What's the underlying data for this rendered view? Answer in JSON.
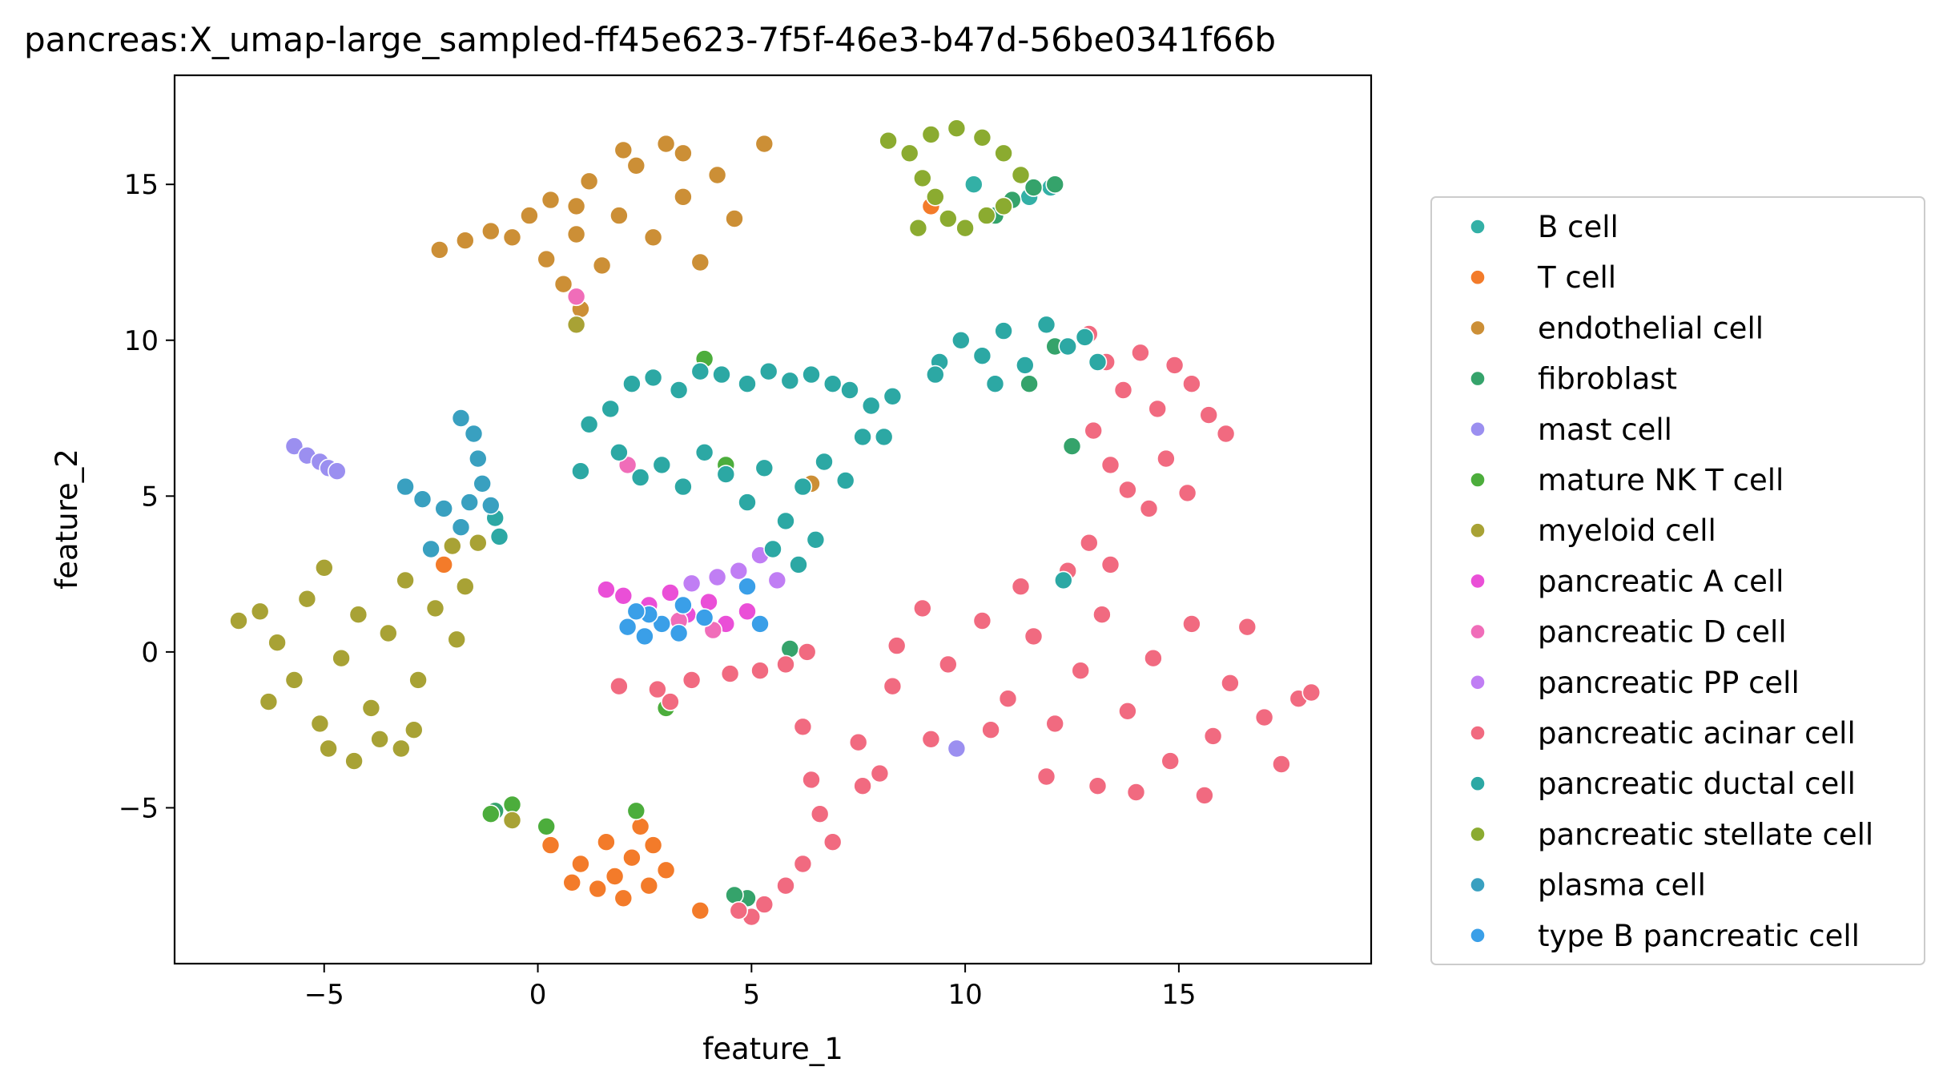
{
  "chart_data": {
    "type": "scatter",
    "title": "pancreas:X_umap-large_sampled-ff45e623-7f5f-46e3-b47d-56be0341f66b",
    "xlabel": "feature_1",
    "ylabel": "feature_2",
    "xlim": [
      -8.5,
      19.5
    ],
    "ylim": [
      -10.0,
      18.5
    ],
    "xticks": [
      -5,
      0,
      5,
      10,
      15
    ],
    "yticks": [
      -5,
      0,
      5,
      10,
      15
    ],
    "xtick_labels": [
      "−5",
      "0",
      "5",
      "10",
      "15"
    ],
    "ytick_labels": [
      "−5",
      "0",
      "5",
      "10",
      "15"
    ],
    "grid": false,
    "legend_position": "outside-right",
    "marker_edge": "#ffffff",
    "series": [
      {
        "name": "B cell",
        "color": "#33b0a6",
        "points": [
          [
            10.2,
            15.0
          ],
          [
            11.5,
            14.6
          ],
          [
            12.0,
            14.9
          ]
        ]
      },
      {
        "name": "T cell",
        "color": "#f37b2a",
        "points": [
          [
            0.3,
            -6.2
          ],
          [
            1.0,
            -6.8
          ],
          [
            1.6,
            -6.1
          ],
          [
            2.2,
            -6.6
          ],
          [
            2.7,
            -6.2
          ],
          [
            0.8,
            -7.4
          ],
          [
            1.4,
            -7.6
          ],
          [
            2.0,
            -7.9
          ],
          [
            2.6,
            -7.5
          ],
          [
            3.0,
            -7.0
          ],
          [
            1.8,
            -7.2
          ],
          [
            2.4,
            -5.6
          ],
          [
            3.8,
            -8.3
          ],
          [
            -2.2,
            2.8
          ],
          [
            9.2,
            14.3
          ]
        ]
      },
      {
        "name": "endothelial cell",
        "color": "#cc8f36",
        "points": [
          [
            -2.3,
            12.9
          ],
          [
            -1.7,
            13.2
          ],
          [
            -1.1,
            13.5
          ],
          [
            -0.6,
            13.3
          ],
          [
            -0.2,
            14.0
          ],
          [
            0.2,
            12.6
          ],
          [
            0.6,
            11.8
          ],
          [
            0.3,
            14.5
          ],
          [
            0.9,
            13.4
          ],
          [
            1.2,
            15.1
          ],
          [
            1.5,
            12.4
          ],
          [
            1.9,
            14.0
          ],
          [
            2.3,
            15.6
          ],
          [
            2.7,
            13.3
          ],
          [
            3.0,
            16.3
          ],
          [
            3.4,
            14.6
          ],
          [
            3.8,
            12.5
          ],
          [
            4.2,
            15.3
          ],
          [
            4.6,
            13.9
          ],
          [
            3.4,
            16.0
          ],
          [
            2.0,
            16.1
          ],
          [
            1.0,
            11.0
          ],
          [
            5.3,
            16.3
          ],
          [
            6.4,
            5.4
          ],
          [
            0.9,
            14.3
          ]
        ]
      },
      {
        "name": "fibroblast",
        "color": "#35a36b",
        "points": [
          [
            10.7,
            14.0
          ],
          [
            11.1,
            14.5
          ],
          [
            11.6,
            14.9
          ],
          [
            12.1,
            15.0
          ],
          [
            11.5,
            8.6
          ],
          [
            12.1,
            9.8
          ],
          [
            4.9,
            -7.9
          ],
          [
            4.6,
            -7.8
          ],
          [
            5.9,
            0.1
          ],
          [
            12.5,
            6.6
          ],
          [
            -1.0,
            -5.1
          ]
        ]
      },
      {
        "name": "mast cell",
        "color": "#9b8ff0",
        "points": [
          [
            -5.7,
            6.6
          ],
          [
            -5.4,
            6.3
          ],
          [
            -5.1,
            6.1
          ],
          [
            -4.9,
            5.9
          ],
          [
            -4.7,
            5.8
          ],
          [
            9.8,
            -3.1
          ]
        ]
      },
      {
        "name": "mature NK T cell",
        "color": "#4cad3c",
        "points": [
          [
            -1.1,
            -5.2
          ],
          [
            -0.6,
            -4.9
          ],
          [
            0.2,
            -5.6
          ],
          [
            2.3,
            -5.1
          ],
          [
            3.9,
            9.4
          ],
          [
            4.4,
            6.0
          ],
          [
            3.0,
            -1.8
          ]
        ]
      },
      {
        "name": "myeloid cell",
        "color": "#a8a235",
        "points": [
          [
            -7.0,
            1.0
          ],
          [
            -6.5,
            1.3
          ],
          [
            -6.1,
            0.3
          ],
          [
            -5.7,
            -0.9
          ],
          [
            -5.4,
            1.7
          ],
          [
            -5.0,
            2.7
          ],
          [
            -4.6,
            -0.2
          ],
          [
            -4.2,
            1.2
          ],
          [
            -3.9,
            -1.8
          ],
          [
            -3.5,
            0.6
          ],
          [
            -3.1,
            2.3
          ],
          [
            -2.8,
            -0.9
          ],
          [
            -2.4,
            1.4
          ],
          [
            -2.0,
            3.4
          ],
          [
            -1.7,
            2.1
          ],
          [
            -1.4,
            3.5
          ],
          [
            -4.9,
            -3.1
          ],
          [
            -4.3,
            -3.5
          ],
          [
            -3.7,
            -2.8
          ],
          [
            -3.2,
            -3.1
          ],
          [
            -6.3,
            -1.6
          ],
          [
            -5.1,
            -2.3
          ],
          [
            -2.9,
            -2.5
          ],
          [
            -1.9,
            0.4
          ],
          [
            0.9,
            10.5
          ],
          [
            -0.6,
            -5.4
          ]
        ]
      },
      {
        "name": "pancreatic A cell",
        "color": "#ea4fd7",
        "points": [
          [
            1.6,
            2.0
          ],
          [
            2.0,
            1.8
          ],
          [
            2.6,
            1.5
          ],
          [
            3.1,
            1.9
          ],
          [
            3.5,
            1.2
          ],
          [
            4.0,
            1.6
          ],
          [
            4.4,
            0.9
          ],
          [
            4.9,
            1.3
          ]
        ]
      },
      {
        "name": "pancreatic D cell",
        "color": "#f06db9",
        "points": [
          [
            2.1,
            6.0
          ],
          [
            0.9,
            11.4
          ],
          [
            3.3,
            1.0
          ],
          [
            4.1,
            0.7
          ]
        ]
      },
      {
        "name": "pancreatic PP cell",
        "color": "#c07ef4",
        "points": [
          [
            3.6,
            2.2
          ],
          [
            4.2,
            2.4
          ],
          [
            4.7,
            2.6
          ],
          [
            5.2,
            3.1
          ],
          [
            5.6,
            2.3
          ]
        ]
      },
      {
        "name": "pancreatic acinar cell",
        "color": "#f16a80",
        "points": [
          [
            12.9,
            10.2
          ],
          [
            13.3,
            9.3
          ],
          [
            13.7,
            8.4
          ],
          [
            14.1,
            9.6
          ],
          [
            14.5,
            7.8
          ],
          [
            14.9,
            9.2
          ],
          [
            15.3,
            8.6
          ],
          [
            15.7,
            7.6
          ],
          [
            16.1,
            7.0
          ],
          [
            13.0,
            7.1
          ],
          [
            13.4,
            6.0
          ],
          [
            13.8,
            5.2
          ],
          [
            14.3,
            4.6
          ],
          [
            14.7,
            6.2
          ],
          [
            15.2,
            5.1
          ],
          [
            12.9,
            3.5
          ],
          [
            13.4,
            2.8
          ],
          [
            12.4,
            2.6
          ],
          [
            11.3,
            2.1
          ],
          [
            9.0,
            1.4
          ],
          [
            8.4,
            0.2
          ],
          [
            8.3,
            -1.1
          ],
          [
            9.6,
            -0.4
          ],
          [
            10.4,
            1.0
          ],
          [
            11.0,
            -1.5
          ],
          [
            11.6,
            0.5
          ],
          [
            12.1,
            -2.3
          ],
          [
            12.7,
            -0.6
          ],
          [
            13.2,
            1.2
          ],
          [
            13.8,
            -1.9
          ],
          [
            14.4,
            -0.2
          ],
          [
            14.8,
            -3.5
          ],
          [
            15.3,
            0.9
          ],
          [
            15.8,
            -2.7
          ],
          [
            16.2,
            -1.0
          ],
          [
            16.6,
            0.8
          ],
          [
            17.0,
            -2.1
          ],
          [
            17.4,
            -3.6
          ],
          [
            17.8,
            -1.5
          ],
          [
            18.1,
            -1.3
          ],
          [
            10.6,
            -2.5
          ],
          [
            11.9,
            -4.0
          ],
          [
            13.1,
            -4.3
          ],
          [
            14.0,
            -4.5
          ],
          [
            15.6,
            -4.6
          ],
          [
            6.2,
            -2.4
          ],
          [
            6.4,
            -4.1
          ],
          [
            6.6,
            -5.2
          ],
          [
            6.9,
            -6.1
          ],
          [
            6.2,
            -6.8
          ],
          [
            5.8,
            -7.5
          ],
          [
            5.3,
            -8.1
          ],
          [
            5.0,
            -8.5
          ],
          [
            4.7,
            -8.3
          ],
          [
            7.6,
            -4.3
          ],
          [
            8.0,
            -3.9
          ],
          [
            7.5,
            -2.9
          ],
          [
            9.2,
            -2.8
          ],
          [
            1.9,
            -1.1
          ],
          [
            2.8,
            -1.2
          ],
          [
            3.6,
            -0.9
          ],
          [
            4.5,
            -0.7
          ],
          [
            5.2,
            -0.6
          ],
          [
            5.8,
            -0.4
          ],
          [
            6.3,
            0.0
          ],
          [
            3.1,
            -1.6
          ]
        ]
      },
      {
        "name": "pancreatic ductal cell",
        "color": "#2ca8a4",
        "points": [
          [
            1.2,
            7.3
          ],
          [
            1.7,
            7.8
          ],
          [
            2.2,
            8.6
          ],
          [
            2.7,
            8.8
          ],
          [
            3.3,
            8.4
          ],
          [
            3.8,
            9.0
          ],
          [
            4.3,
            8.9
          ],
          [
            4.9,
            8.6
          ],
          [
            5.4,
            9.0
          ],
          [
            5.9,
            8.7
          ],
          [
            6.4,
            8.9
          ],
          [
            6.9,
            8.6
          ],
          [
            7.3,
            8.4
          ],
          [
            7.8,
            7.9
          ],
          [
            8.1,
            6.9
          ],
          [
            1.9,
            6.4
          ],
          [
            2.4,
            5.6
          ],
          [
            2.9,
            6.0
          ],
          [
            3.4,
            5.3
          ],
          [
            3.9,
            6.4
          ],
          [
            4.4,
            5.7
          ],
          [
            4.9,
            4.8
          ],
          [
            5.3,
            5.9
          ],
          [
            5.8,
            4.2
          ],
          [
            6.2,
            5.3
          ],
          [
            6.7,
            6.1
          ],
          [
            7.2,
            5.5
          ],
          [
            7.6,
            6.9
          ],
          [
            5.5,
            3.3
          ],
          [
            6.1,
            2.8
          ],
          [
            6.5,
            3.6
          ],
          [
            1.0,
            5.8
          ],
          [
            9.4,
            9.3
          ],
          [
            9.9,
            10.0
          ],
          [
            10.4,
            9.5
          ],
          [
            10.9,
            10.3
          ],
          [
            11.4,
            9.2
          ],
          [
            11.9,
            10.5
          ],
          [
            12.4,
            9.8
          ],
          [
            12.8,
            10.1
          ],
          [
            13.1,
            9.3
          ],
          [
            9.3,
            8.9
          ],
          [
            10.7,
            8.6
          ],
          [
            8.3,
            8.2
          ],
          [
            12.3,
            2.3
          ],
          [
            -1.0,
            4.3
          ],
          [
            -0.9,
            3.7
          ]
        ]
      },
      {
        "name": "pancreatic stellate cell",
        "color": "#8bab30",
        "points": [
          [
            8.2,
            16.4
          ],
          [
            8.7,
            16.0
          ],
          [
            9.2,
            16.6
          ],
          [
            9.8,
            16.8
          ],
          [
            10.4,
            16.5
          ],
          [
            10.9,
            16.0
          ],
          [
            11.3,
            15.3
          ],
          [
            9.0,
            15.2
          ],
          [
            9.3,
            14.6
          ],
          [
            9.6,
            13.9
          ],
          [
            10.0,
            13.6
          ],
          [
            10.5,
            14.0
          ],
          [
            10.9,
            14.3
          ],
          [
            8.9,
            13.6
          ]
        ]
      },
      {
        "name": "plasma cell",
        "color": "#39a0c0",
        "points": [
          [
            -1.8,
            7.5
          ],
          [
            -1.5,
            7.0
          ],
          [
            -1.4,
            6.2
          ],
          [
            -1.3,
            5.4
          ],
          [
            -1.6,
            4.8
          ],
          [
            -2.2,
            4.6
          ],
          [
            -2.7,
            4.9
          ],
          [
            -3.1,
            5.3
          ],
          [
            -1.1,
            4.7
          ],
          [
            -2.5,
            3.3
          ],
          [
            -1.8,
            4.0
          ]
        ]
      },
      {
        "name": "type B pancreatic cell",
        "color": "#3a9fe8",
        "points": [
          [
            2.1,
            0.8
          ],
          [
            2.5,
            0.5
          ],
          [
            2.9,
            0.9
          ],
          [
            3.3,
            0.6
          ],
          [
            2.6,
            1.2
          ],
          [
            3.9,
            1.1
          ],
          [
            3.4,
            1.5
          ],
          [
            2.3,
            1.3
          ],
          [
            5.2,
            0.9
          ],
          [
            4.9,
            2.1
          ]
        ]
      }
    ]
  }
}
